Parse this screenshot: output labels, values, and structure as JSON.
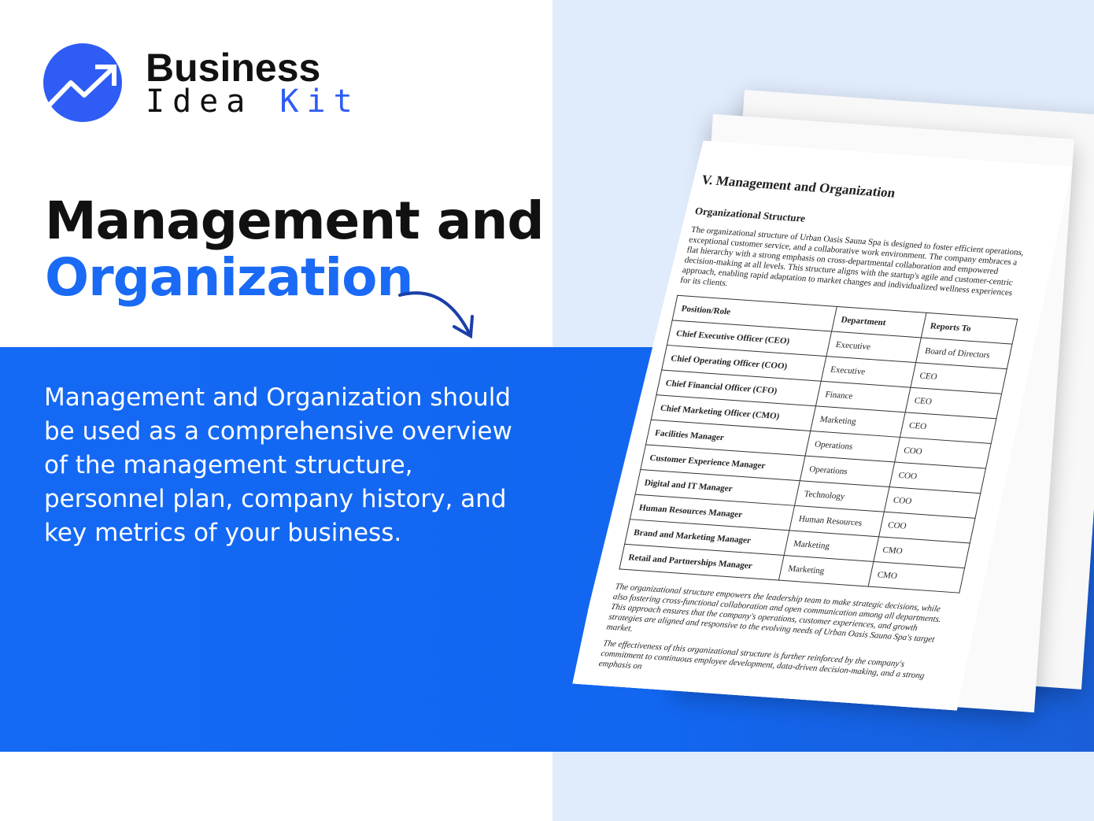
{
  "brand": {
    "line1": "Business",
    "line2a": "Idea",
    "line2b": "Kit",
    "accent": "#2f5cf5"
  },
  "heading": {
    "line1": "Management and",
    "line2": "Organization"
  },
  "description": "Management and Organization should be used as a comprehensive overview of the management structure, personnel plan, company history, and key metrics of your business.",
  "document": {
    "title": "V. Management and Organization",
    "subtitle": "Organizational Structure",
    "intro": "The organizational structure of Urban Oasis Sauna Spa is designed to foster efficient operations, exceptional customer service, and a collaborative work environment. The company embraces a flat hierarchy with a strong emphasis on cross-departmental collaboration and empowered decision-making at all levels. This structure aligns with the startup's agile and customer-centric approach, enabling rapid adaptation to market changes and individualized wellness experiences for its clients.",
    "headers": [
      "Position/Role",
      "Department",
      "Reports To"
    ],
    "rows": [
      [
        "Chief Executive Officer (CEO)",
        "Executive",
        "Board of Directors"
      ],
      [
        "Chief Operating Officer (COO)",
        "Executive",
        "CEO"
      ],
      [
        "Chief Financial Officer (CFO)",
        "Finance",
        "CEO"
      ],
      [
        "Chief Marketing Officer (CMO)",
        "Marketing",
        "CEO"
      ],
      [
        "Facilities Manager",
        "Operations",
        "COO"
      ],
      [
        "Customer Experience Manager",
        "Operations",
        "COO"
      ],
      [
        "Digital and IT Manager",
        "Technology",
        "COO"
      ],
      [
        "Human Resources Manager",
        "Human Resources",
        "COO"
      ],
      [
        "Brand and Marketing Manager",
        "Marketing",
        "CMO"
      ],
      [
        "Retail and Partnerships Manager",
        "Marketing",
        "CMO"
      ]
    ],
    "para2": "The organizational structure empowers the leadership team to make strategic decisions, while also fostering cross-functional collaboration and open communication among all departments. This approach ensures that the company's operations, customer experiences, and growth strategies are aligned and responsive to the evolving needs of Urban Oasis Sauna Spa's target market.",
    "para3": "The effectiveness of this organizational structure is further reinforced by the company's commitment to continuous employee development, data-driven decision-making, and a strong emphasis on"
  }
}
